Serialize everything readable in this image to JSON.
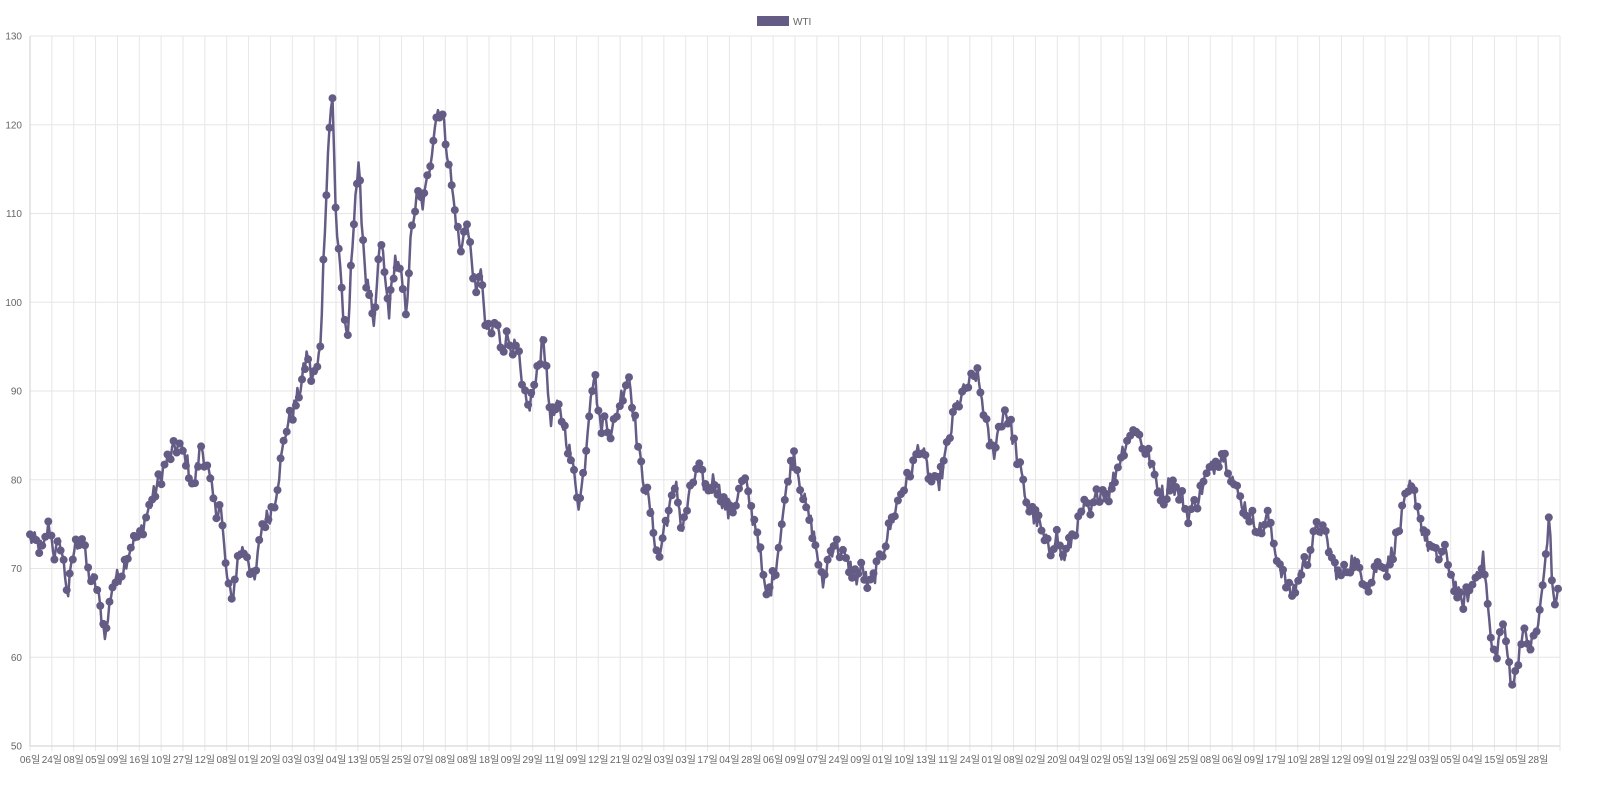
{
  "chart_data": {
    "type": "line",
    "title": "",
    "xlabel": "",
    "ylabel": "",
    "ylim": [
      50,
      130
    ],
    "y_ticks": [
      50,
      60,
      70,
      80,
      90,
      100,
      110,
      120,
      130
    ],
    "grid": true,
    "legend": {
      "position": "top-center",
      "label": "WTI",
      "color": "#655c86"
    },
    "series_color": "#655c86",
    "x_tick_labels": [
      "06일",
      "24일",
      "08일",
      "05일",
      "09일",
      "16일",
      "10일",
      "27일",
      "12일",
      "08일",
      "01일",
      "20일",
      "03일",
      "03일",
      "04일",
      "13일",
      "05일",
      "25일",
      "07일",
      "08일",
      "08일",
      "18일",
      "09일",
      "29일",
      "11일",
      "09일",
      "12일",
      "21일",
      "02일",
      "03일",
      "03일",
      "17일",
      "04일",
      "28일",
      "06일",
      "09일",
      "07일",
      "24일",
      "09일",
      "01일",
      "10일",
      "13일",
      "11일",
      "24일",
      "01일",
      "08일",
      "02일",
      "20일",
      "04일",
      "02일",
      "05일",
      "13일",
      "06일",
      "25일",
      "08일",
      "06일",
      "09일",
      "17일",
      "10일",
      "28일",
      "12일",
      "09일",
      "01일",
      "22일",
      "03일",
      "05일",
      "04일",
      "15일",
      "05일",
      "28일"
    ],
    "series": [
      {
        "name": "WTI",
        "anchors": [
          [
            0,
            73.5
          ],
          [
            14,
            72
          ],
          [
            20,
            75
          ],
          [
            26,
            71.5
          ],
          [
            32,
            73
          ],
          [
            40,
            67
          ],
          [
            46,
            72
          ],
          [
            54,
            74
          ],
          [
            62,
            69
          ],
          [
            70,
            68
          ],
          [
            76,
            64
          ],
          [
            80,
            62.5
          ],
          [
            86,
            68
          ],
          [
            96,
            69.5
          ],
          [
            106,
            72.5
          ],
          [
            116,
            74
          ],
          [
            126,
            77
          ],
          [
            136,
            80
          ],
          [
            146,
            82.5
          ],
          [
            156,
            84
          ],
          [
            164,
            82.5
          ],
          [
            172,
            79
          ],
          [
            180,
            84
          ],
          [
            188,
            80.5
          ],
          [
            196,
            76
          ],
          [
            200,
            78
          ],
          [
            206,
            70
          ],
          [
            212,
            66
          ],
          [
            220,
            72
          ],
          [
            228,
            72
          ],
          [
            236,
            68
          ],
          [
            244,
            75
          ],
          [
            252,
            76
          ],
          [
            258,
            78
          ],
          [
            264,
            82
          ],
          [
            270,
            86
          ],
          [
            278,
            88
          ],
          [
            286,
            91
          ],
          [
            292,
            94.5
          ],
          [
            296,
            91.5
          ],
          [
            302,
            92
          ],
          [
            306,
            96
          ],
          [
            310,
            108
          ],
          [
            314,
            118
          ],
          [
            318,
            124
          ],
          [
            322,
            109
          ],
          [
            326,
            105
          ],
          [
            330,
            98
          ],
          [
            334,
            95
          ],
          [
            338,
            104
          ],
          [
            342,
            112
          ],
          [
            346,
            115
          ],
          [
            350,
            108
          ],
          [
            354,
            102
          ],
          [
            358,
            101
          ],
          [
            362,
            96
          ],
          [
            366,
            104
          ],
          [
            370,
            107
          ],
          [
            374,
            102
          ],
          [
            378,
            99
          ],
          [
            384,
            105
          ],
          [
            390,
            103
          ],
          [
            396,
            99
          ],
          [
            400,
            106
          ],
          [
            404,
            110
          ],
          [
            408,
            112
          ],
          [
            414,
            111
          ],
          [
            420,
            115
          ],
          [
            426,
            120
          ],
          [
            430,
            122
          ],
          [
            434,
            121
          ],
          [
            438,
            118
          ],
          [
            442,
            115
          ],
          [
            446,
            111
          ],
          [
            450,
            108
          ],
          [
            454,
            105
          ],
          [
            458,
            110
          ],
          [
            462,
            107
          ],
          [
            466,
            104
          ],
          [
            470,
            100
          ],
          [
            474,
            105
          ],
          [
            478,
            98
          ],
          [
            484,
            96
          ],
          [
            490,
            98
          ],
          [
            496,
            95
          ],
          [
            502,
            96
          ],
          [
            508,
            95
          ],
          [
            514,
            94
          ],
          [
            518,
            90
          ],
          [
            524,
            88
          ],
          [
            530,
            90
          ],
          [
            536,
            93
          ],
          [
            540,
            97
          ],
          [
            544,
            91
          ],
          [
            548,
            87
          ],
          [
            556,
            88
          ],
          [
            562,
            86
          ],
          [
            568,
            83
          ],
          [
            574,
            80
          ],
          [
            578,
            77
          ],
          [
            584,
            82
          ],
          [
            590,
            90
          ],
          [
            594,
            92
          ],
          [
            600,
            86
          ],
          [
            606,
            87
          ],
          [
            612,
            85
          ],
          [
            618,
            88
          ],
          [
            624,
            90
          ],
          [
            630,
            92
          ],
          [
            636,
            87
          ],
          [
            642,
            82
          ],
          [
            648,
            79
          ],
          [
            654,
            76
          ],
          [
            658,
            73
          ],
          [
            662,
            71
          ],
          [
            668,
            75
          ],
          [
            674,
            77
          ],
          [
            680,
            80
          ],
          [
            686,
            74
          ],
          [
            692,
            77
          ],
          [
            698,
            80
          ],
          [
            704,
            81
          ],
          [
            712,
            79
          ],
          [
            720,
            80
          ],
          [
            728,
            78
          ],
          [
            736,
            76
          ],
          [
            744,
            78
          ],
          [
            752,
            80
          ],
          [
            760,
            76
          ],
          [
            766,
            74
          ],
          [
            770,
            70
          ],
          [
            774,
            67
          ],
          [
            780,
            68
          ],
          [
            786,
            71
          ],
          [
            792,
            76
          ],
          [
            798,
            80
          ],
          [
            804,
            83
          ],
          [
            810,
            80
          ],
          [
            816,
            77
          ],
          [
            822,
            75
          ],
          [
            828,
            72
          ],
          [
            834,
            68
          ],
          [
            840,
            71
          ],
          [
            846,
            73
          ],
          [
            852,
            72
          ],
          [
            858,
            71
          ],
          [
            864,
            70
          ],
          [
            870,
            69
          ],
          [
            876,
            70
          ],
          [
            882,
            68
          ],
          [
            888,
            69
          ],
          [
            894,
            71
          ],
          [
            900,
            73
          ],
          [
            906,
            75
          ],
          [
            912,
            77
          ],
          [
            918,
            79
          ],
          [
            924,
            80
          ],
          [
            930,
            82
          ],
          [
            936,
            84
          ],
          [
            942,
            82
          ],
          [
            948,
            80
          ],
          [
            954,
            79
          ],
          [
            960,
            81
          ],
          [
            966,
            84
          ],
          [
            972,
            87
          ],
          [
            978,
            89
          ],
          [
            984,
            90
          ],
          [
            990,
            91
          ],
          [
            996,
            92
          ],
          [
            1002,
            89
          ],
          [
            1008,
            85
          ],
          [
            1014,
            83
          ],
          [
            1020,
            86
          ],
          [
            1026,
            88
          ],
          [
            1032,
            86
          ],
          [
            1038,
            83
          ],
          [
            1044,
            80
          ],
          [
            1050,
            77
          ],
          [
            1056,
            76
          ],
          [
            1062,
            75
          ],
          [
            1068,
            73
          ],
          [
            1074,
            72
          ],
          [
            1080,
            74
          ],
          [
            1086,
            71
          ],
          [
            1092,
            72
          ],
          [
            1098,
            74
          ],
          [
            1104,
            75
          ],
          [
            1110,
            77
          ],
          [
            1116,
            76
          ],
          [
            1122,
            78
          ],
          [
            1128,
            79
          ],
          [
            1134,
            78
          ],
          [
            1140,
            80
          ],
          [
            1146,
            82
          ],
          [
            1152,
            84
          ],
          [
            1158,
            85
          ],
          [
            1164,
            86
          ],
          [
            1170,
            84
          ],
          [
            1176,
            83
          ],
          [
            1182,
            81
          ],
          [
            1188,
            79
          ],
          [
            1194,
            78
          ],
          [
            1200,
            80
          ],
          [
            1206,
            79
          ],
          [
            1212,
            78
          ],
          [
            1218,
            76
          ],
          [
            1224,
            77
          ],
          [
            1230,
            78
          ],
          [
            1236,
            80
          ],
          [
            1242,
            81
          ],
          [
            1248,
            82
          ],
          [
            1254,
            83
          ],
          [
            1260,
            82
          ],
          [
            1266,
            80
          ],
          [
            1272,
            78
          ],
          [
            1278,
            77
          ],
          [
            1284,
            76
          ],
          [
            1290,
            75
          ],
          [
            1296,
            74
          ],
          [
            1302,
            76
          ],
          [
            1308,
            73
          ],
          [
            1314,
            71
          ],
          [
            1320,
            69
          ],
          [
            1326,
            67
          ],
          [
            1332,
            68
          ],
          [
            1338,
            70
          ],
          [
            1344,
            71
          ],
          [
            1350,
            73
          ],
          [
            1356,
            75
          ],
          [
            1362,
            74
          ],
          [
            1368,
            72
          ],
          [
            1374,
            70
          ],
          [
            1380,
            69
          ],
          [
            1386,
            70
          ],
          [
            1392,
            71
          ],
          [
            1398,
            70
          ],
          [
            1404,
            69
          ],
          [
            1410,
            68
          ],
          [
            1416,
            70
          ],
          [
            1422,
            71
          ],
          [
            1428,
            70
          ],
          [
            1434,
            72
          ],
          [
            1440,
            74
          ],
          [
            1446,
            77
          ],
          [
            1452,
            79
          ],
          [
            1458,
            78
          ],
          [
            1464,
            75
          ],
          [
            1470,
            73
          ],
          [
            1476,
            72
          ],
          [
            1482,
            71
          ],
          [
            1488,
            72
          ],
          [
            1494,
            70
          ],
          [
            1500,
            68
          ],
          [
            1506,
            66
          ],
          [
            1512,
            67
          ],
          [
            1518,
            68
          ],
          [
            1524,
            70
          ],
          [
            1530,
            71
          ],
          [
            1534,
            66
          ],
          [
            1538,
            61
          ],
          [
            1542,
            60
          ],
          [
            1546,
            62
          ],
          [
            1550,
            64
          ],
          [
            1554,
            61
          ],
          [
            1558,
            58
          ],
          [
            1562,
            57
          ],
          [
            1566,
            60
          ],
          [
            1570,
            63
          ],
          [
            1574,
            62
          ],
          [
            1578,
            61
          ],
          [
            1582,
            62
          ],
          [
            1586,
            63
          ],
          [
            1590,
            66
          ],
          [
            1594,
            70
          ],
          [
            1596,
            73
          ],
          [
            1598,
            75
          ],
          [
            1600,
            74
          ],
          [
            1602,
            68
          ],
          [
            1604,
            65
          ],
          [
            1606,
            67
          ],
          [
            1608,
            68
          ]
        ]
      }
    ]
  }
}
